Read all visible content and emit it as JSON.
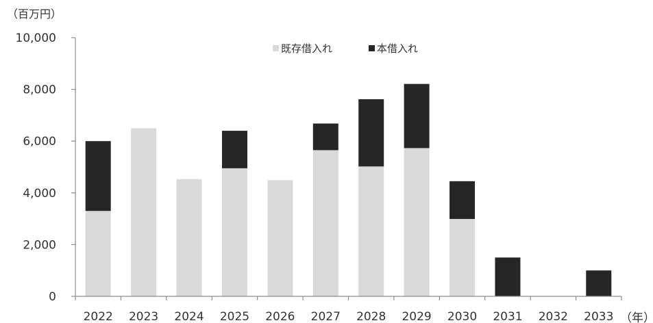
{
  "chart_data": {
    "type": "bar",
    "stacked": true,
    "y_unit_label": "（百万円）",
    "x_unit_label": "（年）",
    "categories": [
      "2022",
      "2023",
      "2024",
      "2025",
      "2026",
      "2027",
      "2028",
      "2029",
      "2030",
      "2031",
      "2032",
      "2033"
    ],
    "series": [
      {
        "name": "既存借入れ",
        "color": "#d9d9d9",
        "values": [
          3300,
          6500,
          4530,
          4950,
          4490,
          5650,
          5020,
          5730,
          2990,
          0,
          0,
          0
        ]
      },
      {
        "name": "本借入れ",
        "color": "#262626",
        "values": [
          2700,
          0,
          0,
          1450,
          0,
          1030,
          2600,
          2480,
          1460,
          1500,
          0,
          1000
        ]
      }
    ],
    "ylim": [
      0,
      10000
    ],
    "yticks": [
      "0",
      "2,000",
      "4,000",
      "6,000",
      "8,000",
      "10,000"
    ],
    "ytick_values": [
      0,
      2000,
      4000,
      6000,
      8000,
      10000
    ],
    "grid": false,
    "legend_position": "top-center"
  }
}
